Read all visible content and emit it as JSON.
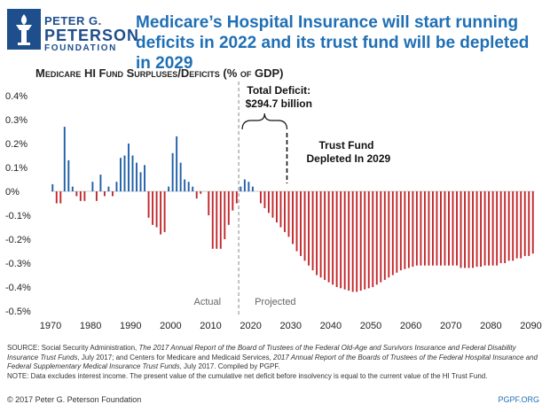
{
  "logo": {
    "line1": "PETER G.",
    "line2": "PETERSON",
    "line3": "FOUNDATION"
  },
  "headline": "Medicare’s Hospital Insurance will start running deficits in 2022 and its trust fund will be depleted in 2029",
  "chart_data": {
    "type": "bar",
    "title": "Medicare HI Fund Surpluses/Deficits (% of GDP)",
    "ylabel": "% of GDP",
    "ylim": [
      -0.5,
      0.4
    ],
    "yticks": [
      "0.4%",
      "0.3%",
      "0.2%",
      "0.1%",
      "0%",
      "-0.1%",
      "-0.2%",
      "-0.3%",
      "-0.4%",
      "-0.5%"
    ],
    "xlim": [
      1970,
      2091
    ],
    "xticks": [
      "1970",
      "1980",
      "1990",
      "2000",
      "2010",
      "2020",
      "2030",
      "2040",
      "2050",
      "2060",
      "2070",
      "2080",
      "2090"
    ],
    "colors": {
      "surplus": "#1f5fa8",
      "deficit": "#c0282d"
    },
    "series": [
      {
        "name": "Actual",
        "years": [
          1970,
          1971,
          1972,
          1973,
          1974,
          1975,
          1976,
          1977,
          1978,
          1979,
          1980,
          1981,
          1982,
          1983,
          1984,
          1985,
          1986,
          1987,
          1988,
          1989,
          1990,
          1991,
          1992,
          1993,
          1994,
          1995,
          1996,
          1997,
          1998,
          1999,
          2000,
          2001,
          2002,
          2003,
          2004,
          2005,
          2006,
          2007,
          2008,
          2009,
          2010,
          2011,
          2012,
          2013,
          2014,
          2015,
          2016
        ],
        "values": [
          0.03,
          -0.05,
          -0.05,
          0.27,
          0.13,
          0.02,
          -0.02,
          -0.04,
          -0.04,
          0.0,
          0.04,
          -0.04,
          0.07,
          -0.02,
          0.02,
          -0.02,
          0.04,
          0.14,
          0.15,
          0.2,
          0.15,
          0.12,
          0.08,
          0.11,
          -0.11,
          -0.14,
          -0.15,
          -0.18,
          -0.17,
          0.02,
          0.16,
          0.23,
          0.12,
          0.05,
          0.04,
          0.02,
          -0.03,
          -0.01,
          0.0,
          -0.1,
          -0.24,
          -0.24,
          -0.24,
          -0.2,
          -0.14,
          -0.08,
          -0.05
        ]
      },
      {
        "name": "Projected",
        "years": [
          2017,
          2018,
          2019,
          2020,
          2021,
          2022,
          2023,
          2024,
          2025,
          2026,
          2027,
          2028,
          2029,
          2030,
          2031,
          2032,
          2033,
          2034,
          2035,
          2036,
          2037,
          2038,
          2039,
          2040,
          2041,
          2042,
          2043,
          2044,
          2045,
          2046,
          2047,
          2048,
          2049,
          2050,
          2051,
          2052,
          2053,
          2054,
          2055,
          2056,
          2057,
          2058,
          2059,
          2060,
          2061,
          2062,
          2063,
          2064,
          2065,
          2066,
          2067,
          2068,
          2069,
          2070,
          2071,
          2072,
          2073,
          2074,
          2075,
          2076,
          2077,
          2078,
          2079,
          2080,
          2081,
          2082,
          2083,
          2084,
          2085,
          2086,
          2087,
          2088,
          2089,
          2090
        ],
        "values": [
          0.02,
          0.05,
          0.04,
          0.02,
          0.0,
          -0.05,
          -0.07,
          -0.09,
          -0.11,
          -0.13,
          -0.15,
          -0.17,
          -0.19,
          -0.22,
          -0.25,
          -0.27,
          -0.29,
          -0.31,
          -0.33,
          -0.35,
          -0.36,
          -0.37,
          -0.38,
          -0.39,
          -0.4,
          -0.405,
          -0.41,
          -0.415,
          -0.42,
          -0.42,
          -0.415,
          -0.41,
          -0.405,
          -0.4,
          -0.39,
          -0.38,
          -0.37,
          -0.36,
          -0.35,
          -0.34,
          -0.33,
          -0.325,
          -0.32,
          -0.315,
          -0.31,
          -0.31,
          -0.31,
          -0.31,
          -0.31,
          -0.31,
          -0.31,
          -0.31,
          -0.31,
          -0.31,
          -0.31,
          -0.32,
          -0.32,
          -0.32,
          -0.32,
          -0.315,
          -0.315,
          -0.31,
          -0.31,
          -0.31,
          -0.31,
          -0.3,
          -0.3,
          -0.29,
          -0.29,
          -0.28,
          -0.28,
          -0.27,
          -0.27,
          -0.26
        ]
      }
    ],
    "divider_year": 2016.5,
    "trust_fund_year": 2029,
    "annotations": {
      "actual": "Actual",
      "projected": "Projected",
      "total_deficit_line1": "Total Deficit:",
      "total_deficit_line2": "$294.7 billion",
      "trust_fund_line1": "Trust Fund",
      "trust_fund_line2": "Depleted In 2029"
    }
  },
  "footer": {
    "source_label": "SOURCE: Social Security Administration, ",
    "source_title1": "The 2017 Annual Report of the Board of Trustees of the Federal Old-Age and Survivors Insurance and Federal Disability Insurance Trust Funds",
    "source_mid": ", July 2017; and Centers for Medicare and Medicaid Services, ",
    "source_title2": "2017 Annual Report of the Boards of Trustees of the Federal Hospital Insurance and Federal Supplementary Medical Insurance Trust Funds",
    "source_end": ", July 2017. Compiled by PGPF.",
    "note": "NOTE: Data excludes interest income. The present value of the cumulative net deficit before insolvency is equal to the current value of the HI Trust Fund.",
    "copyright": "© 2017 Peter G. Peterson Foundation",
    "site": "PGPF.ORG"
  }
}
